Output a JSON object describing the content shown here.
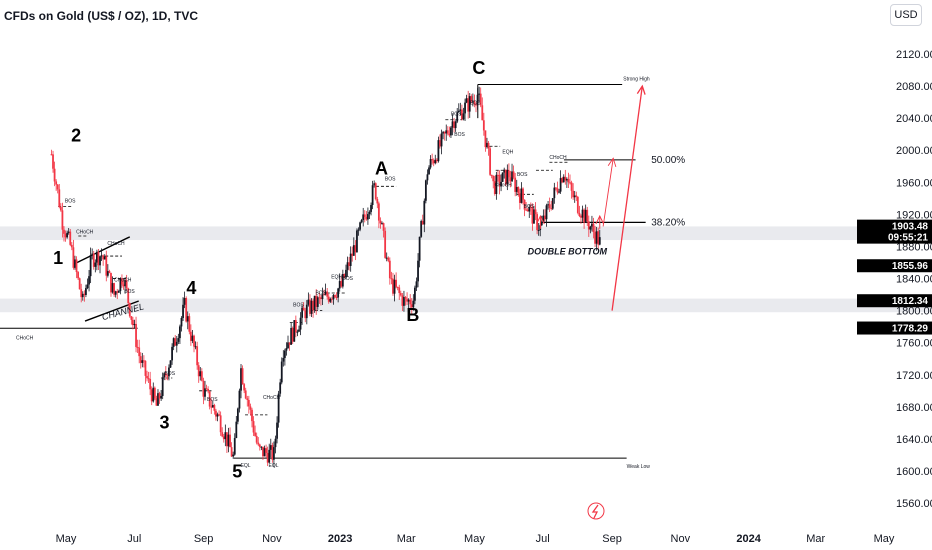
{
  "title": "CFDs on Gold (US$ / OZ), 1D, TVC",
  "currency_button": "USD",
  "chart_data": {
    "type": "candlestick",
    "title": "CFDs on Gold (US$ / OZ), 1D, TVC",
    "y_ticks": [
      1560,
      1600,
      1640,
      1680,
      1720,
      1760,
      1800,
      1840,
      1880,
      1920,
      1960,
      2000,
      2040,
      2080,
      2120
    ],
    "ylim": [
      1548,
      2145
    ],
    "x_ticks": [
      "May",
      "Jul",
      "Sep",
      "Nov",
      "2023",
      "Mar",
      "May",
      "Jul",
      "Sep",
      "Nov",
      "2024",
      "Mar",
      "May"
    ],
    "price_path": [
      [
        "2022-04-18",
        1995
      ],
      [
        "2022-04-28",
        1910
      ],
      [
        "2022-05-05",
        1880
      ],
      [
        "2022-05-16",
        1810
      ],
      [
        "2022-05-24",
        1865
      ],
      [
        "2022-06-02",
        1870
      ],
      [
        "2022-06-13",
        1820
      ],
      [
        "2022-06-21",
        1845
      ],
      [
        "2022-07-06",
        1740
      ],
      [
        "2022-07-21",
        1680
      ],
      [
        "2022-08-15",
        1805
      ],
      [
        "2022-09-01",
        1700
      ],
      [
        "2022-09-15",
        1665
      ],
      [
        "2022-09-28",
        1615
      ],
      [
        "2022-10-04",
        1730
      ],
      [
        "2022-10-20",
        1625
      ],
      [
        "2022-11-03",
        1620
      ],
      [
        "2022-11-10",
        1750
      ],
      [
        "2022-12-01",
        1800
      ],
      [
        "2023-01-02",
        1830
      ],
      [
        "2023-02-01",
        1955
      ],
      [
        "2023-02-15",
        1835
      ],
      [
        "2023-02-28",
        1810
      ],
      [
        "2023-03-08",
        1815
      ],
      [
        "2023-03-20",
        1975
      ],
      [
        "2023-04-13",
        2040
      ],
      [
        "2023-05-04",
        2070
      ],
      [
        "2023-05-18",
        1955
      ],
      [
        "2023-06-01",
        1970
      ],
      [
        "2023-06-23",
        1915
      ],
      [
        "2023-06-29",
        1903
      ],
      [
        "2023-07-20",
        1975
      ],
      [
        "2023-07-27",
        1945
      ],
      [
        "2023-08-21",
        1885
      ]
    ],
    "price_labels": [
      {
        "value": 1903.48,
        "text": "1903.48",
        "sub": "09:55:21",
        "color": "#000000"
      },
      {
        "value": 1855.96,
        "text": "1855.96",
        "color": "#000000"
      },
      {
        "value": 1812.34,
        "text": "1812.34",
        "color": "#000000"
      },
      {
        "value": 1778.29,
        "text": "1778.29",
        "color": "#000000"
      }
    ],
    "zones": [
      {
        "from": 1888,
        "to": 1905
      },
      {
        "from": 1798,
        "to": 1815
      }
    ],
    "wave_labels": [
      {
        "text": "1",
        "date": "2022-04-24",
        "price": 1858
      },
      {
        "text": "2",
        "date": "2022-05-10",
        "price": 2011
      },
      {
        "text": "3",
        "date": "2022-07-28",
        "price": 1653
      },
      {
        "text": "4",
        "date": "2022-08-21",
        "price": 1821
      },
      {
        "text": "5",
        "date": "2022-10-01",
        "price": 1592
      },
      {
        "text": "A",
        "date": "2023-02-07",
        "price": 1970
      },
      {
        "text": "B",
        "date": "2023-03-07",
        "price": 1787
      },
      {
        "text": "C",
        "date": "2023-05-05",
        "price": 2095
      }
    ],
    "annotations": {
      "channel": "CHANNEL",
      "double_bottom": "DOUBLE BOTTOM",
      "strong_high": "Strong High",
      "weak_low": "Weak Low",
      "fib_50": "50.00%",
      "fib_382": "38.20%",
      "choch": "CHoCH",
      "bos": "BOS",
      "eqh": "EQH",
      "eql": "EQL"
    },
    "levels": {
      "strong_high": 2082,
      "weak_low": 1616,
      "fib_50": 1988,
      "fib_382": 1910,
      "choch_left": 1778
    },
    "colors": {
      "up": "#131722",
      "down": "#f23645",
      "projection": "#f23645",
      "zone": "#e9eaee"
    }
  }
}
